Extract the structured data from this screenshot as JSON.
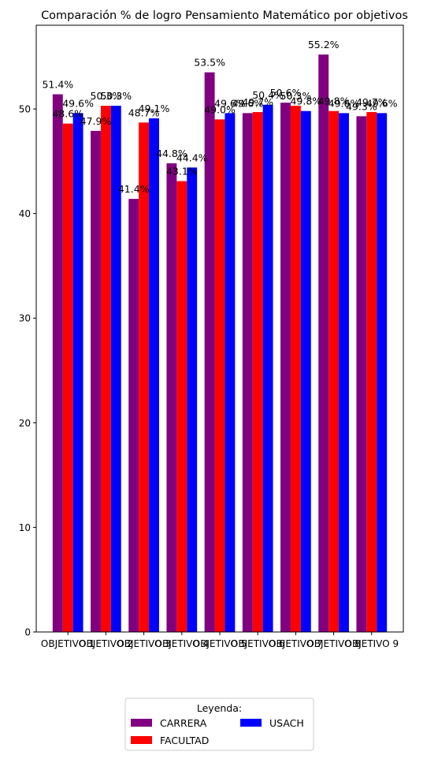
{
  "chart_data": {
    "type": "bar",
    "title": "Comparación % de logro Pensamiento Matemático por objetivos",
    "xlabel": "",
    "ylabel": "",
    "categories": [
      "OBJETIVO 1",
      "OBJETIVO 2",
      "OBJETIVO 3",
      "OBJETIVO 4",
      "OBJETIVO 5",
      "OBJETIVO 6",
      "OBJETIVO 7",
      "OBJETIVO 8",
      "OBJETIVO 9"
    ],
    "series": [
      {
        "name": "CARRERA",
        "color": "#800080",
        "values": [
          51.4,
          47.9,
          41.4,
          44.8,
          53.5,
          49.6,
          50.6,
          55.2,
          49.3
        ]
      },
      {
        "name": "FACULTAD",
        "color": "#ff0000",
        "values": [
          48.6,
          50.3,
          48.7,
          43.1,
          49.0,
          49.7,
          50.3,
          49.8,
          49.7
        ]
      },
      {
        "name": "USACH",
        "color": "#0000ff",
        "values": [
          49.6,
          50.3,
          49.1,
          44.4,
          49.6,
          50.4,
          49.8,
          49.6,
          49.6
        ]
      }
    ],
    "value_suffix": "%",
    "ylim": [
      0,
      58
    ],
    "yticks": [
      0,
      10,
      20,
      30,
      40,
      50
    ],
    "grid": false,
    "legend": {
      "title": "Leyenda:",
      "placement": "bottom-center, below plot"
    }
  }
}
